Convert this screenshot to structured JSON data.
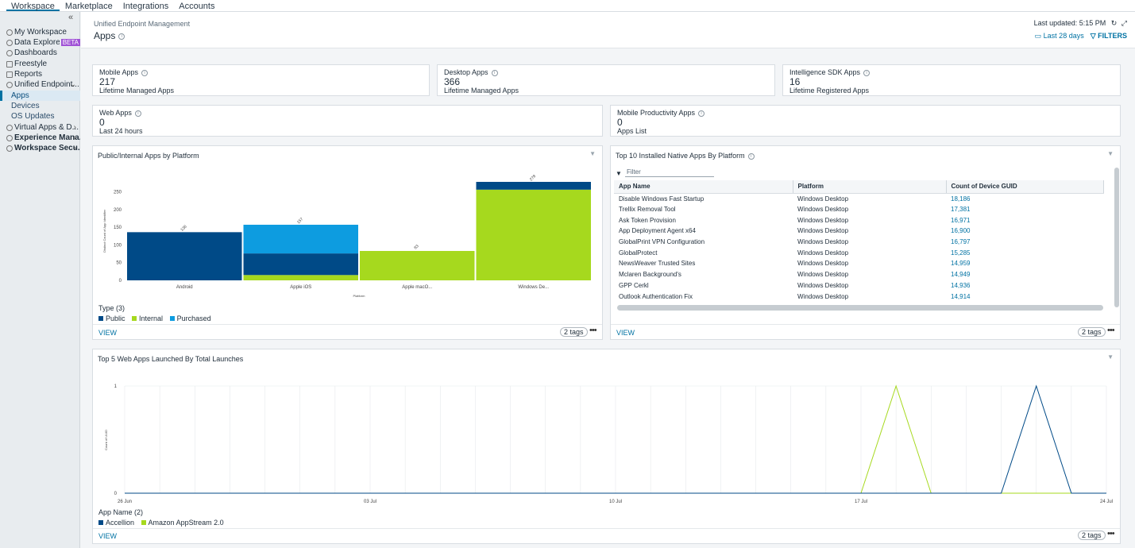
{
  "topnav": {
    "tabs": [
      "Workspace",
      "Marketplace",
      "Integrations",
      "Accounts"
    ]
  },
  "sidebar": {
    "collapse_icon": "double-chevron-left-icon",
    "items": [
      {
        "label": "My Workspace",
        "icon": "person-icon"
      },
      {
        "label": "Data Explorer",
        "icon": "compass-icon",
        "badge": "BETA"
      },
      {
        "label": "Dashboards",
        "icon": "dashboard-icon"
      },
      {
        "label": "Freestyle",
        "icon": "flow-icon"
      },
      {
        "label": "Reports",
        "icon": "document-icon"
      },
      {
        "label": "Unified Endpoint...",
        "icon": "lock-icon"
      },
      {
        "label": "Virtual Apps & D...",
        "icon": "lock-icon"
      },
      {
        "label": "Experience Mana...",
        "icon": "lock-icon"
      },
      {
        "label": "Workspace Secu...",
        "icon": "lock-icon"
      }
    ],
    "subitems": [
      "Apps",
      "Devices",
      "OS Updates"
    ]
  },
  "header": {
    "breadcrumb": "Unified Endpoint Management",
    "title": "Apps",
    "last_updated": "Last updated: 5:15 PM",
    "range": "Last 28 days",
    "filters": "FILTERS"
  },
  "cards": [
    {
      "title": "Mobile Apps",
      "value": "217",
      "sub": "Lifetime Managed Apps"
    },
    {
      "title": "Desktop Apps",
      "value": "366",
      "sub": "Lifetime Managed Apps"
    },
    {
      "title": "Intelligence SDK Apps",
      "value": "16",
      "sub": "Lifetime Registered Apps"
    },
    {
      "title": "Web Apps",
      "value": "0",
      "sub": "Last 24 hours"
    },
    {
      "title": "Mobile Productivity Apps",
      "value": "0",
      "sub": "Apps List"
    }
  ],
  "bar_panel": {
    "title": "Public/Internal Apps by Platform",
    "legend_title": "Type (3)",
    "view": "VIEW",
    "tags": "2 tags",
    "ylabel": "Distinct Count of App Identifier",
    "xlabel": "Platform"
  },
  "table_panel": {
    "title": "Top 10 Installed Native Apps By Platform",
    "filter_placeholder": "Filter",
    "columns": [
      "App Name",
      "Platform",
      "Count of Device GUID"
    ],
    "rows": [
      [
        "Disable Windows Fast Startup",
        "Windows Desktop",
        "18,186"
      ],
      [
        "Trellix Removal Tool",
        "Windows Desktop",
        "17,381"
      ],
      [
        "Ask Token Provision",
        "Windows Desktop",
        "16,971"
      ],
      [
        "App Deployment Agent x64",
        "Windows Desktop",
        "16,900"
      ],
      [
        "GlobalPrint VPN Configuration",
        "Windows Desktop",
        "16,797"
      ],
      [
        "GlobalProtect",
        "Windows Desktop",
        "15,285"
      ],
      [
        "NewsWeaver Trusted Sites",
        "Windows Desktop",
        "14,959"
      ],
      [
        "Mclaren Background's",
        "Windows Desktop",
        "14,949"
      ],
      [
        "GPP Cerkl",
        "Windows Desktop",
        "14,936"
      ],
      [
        "Outlook Authentication Fix",
        "Windows Desktop",
        "14,914"
      ]
    ],
    "view": "VIEW",
    "tags": "2 tags"
  },
  "line_panel": {
    "title": "Top 5 Web Apps Launched By Total Launches",
    "legend_title": "App Name (2)",
    "view": "VIEW",
    "tags": "2 tags",
    "ylabel": "Count of UUID"
  },
  "colors": {
    "public": "#004a87",
    "internal": "#a6d91e",
    "purchased": "#0d9ce0",
    "link": "#0072a3"
  },
  "chart_data": [
    {
      "type": "bar",
      "title": "Public/Internal Apps by Platform",
      "xlabel": "Platform",
      "ylabel": "Distinct Count of App Identifier",
      "categories": [
        "Android",
        "Apple iOS",
        "Apple macO...",
        "Windows De..."
      ],
      "series": [
        {
          "name": "Public",
          "values": [
            136,
            61,
            0,
            22
          ]
        },
        {
          "name": "Internal",
          "values": [
            0,
            15,
            83,
            256
          ]
        },
        {
          "name": "Purchased",
          "values": [
            0,
            81,
            0,
            0
          ]
        }
      ],
      "totals": [
        "136",
        "157",
        "83",
        "278"
      ],
      "yticks": [
        0,
        50,
        100,
        150,
        200,
        250
      ],
      "ylim": [
        0,
        278
      ],
      "legend": "bottom-left",
      "stacked": true
    },
    {
      "type": "line",
      "title": "Top 5 Web Apps Launched By Total Launches",
      "ylabel": "Count of UUID",
      "xticks": [
        "26 Jun",
        "03 Jul",
        "10 Jul",
        "17 Jul",
        "24 Jul"
      ],
      "x": [
        "26 Jun",
        "27 Jun",
        "28 Jun",
        "29 Jun",
        "30 Jun",
        "01 Jul",
        "02 Jul",
        "03 Jul",
        "04 Jul",
        "05 Jul",
        "06 Jul",
        "07 Jul",
        "08 Jul",
        "09 Jul",
        "10 Jul",
        "11 Jul",
        "12 Jul",
        "13 Jul",
        "14 Jul",
        "15 Jul",
        "16 Jul",
        "17 Jul",
        "18 Jul",
        "19 Jul",
        "20 Jul",
        "21 Jul",
        "22 Jul",
        "23 Jul",
        "24 Jul"
      ],
      "series": [
        {
          "name": "Accellion",
          "values": [
            0,
            0,
            0,
            0,
            0,
            0,
            0,
            0,
            0,
            0,
            0,
            0,
            0,
            0,
            0,
            0,
            0,
            0,
            0,
            0,
            0,
            0,
            0,
            0,
            0,
            0,
            1,
            0,
            0
          ]
        },
        {
          "name": "Amazon AppStream 2.0",
          "values": [
            0,
            0,
            0,
            0,
            0,
            0,
            0,
            0,
            0,
            0,
            0,
            0,
            0,
            0,
            0,
            0,
            0,
            0,
            0,
            0,
            0,
            0,
            1,
            0,
            0,
            0,
            0,
            0,
            0
          ]
        }
      ],
      "yticks": [
        0,
        1
      ],
      "ylim": [
        0,
        1
      ],
      "grid": true,
      "legend": "bottom-left"
    }
  ]
}
